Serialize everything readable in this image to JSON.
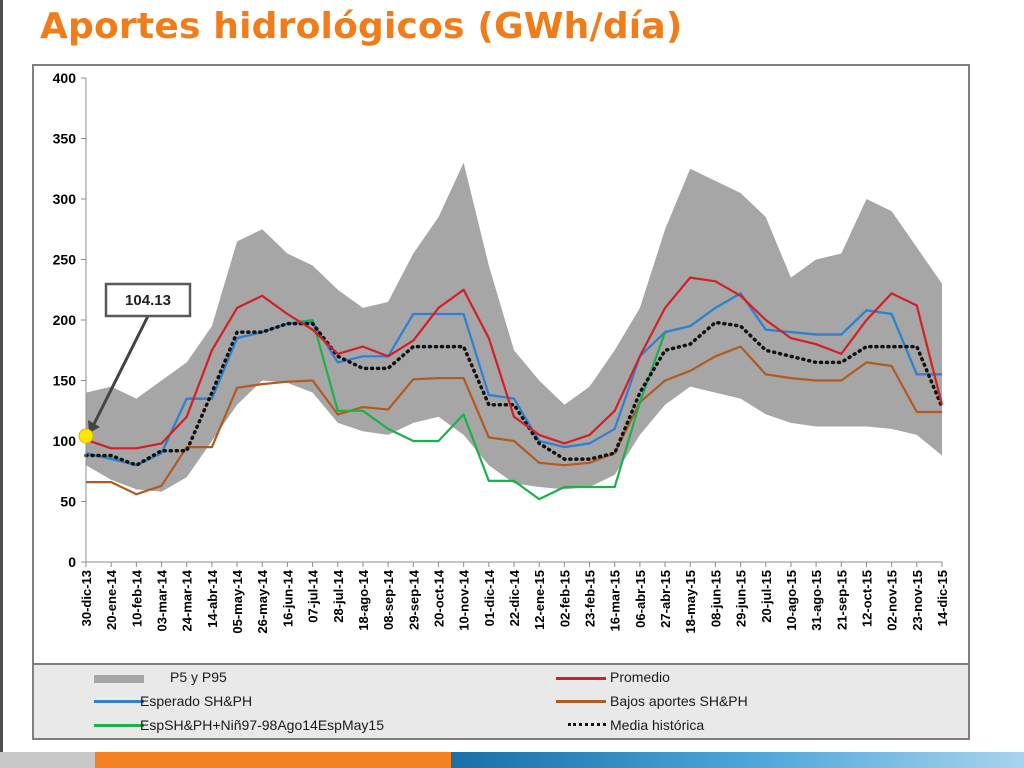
{
  "title": "Aportes hidrológicos (GWh/día)",
  "callout_label": "104.13",
  "colors": {
    "band": "#a6a6a6",
    "promedio": "#d41f26",
    "esperado": "#2f7fd6",
    "bajos": "#b35a1f",
    "nino": "#19b24b",
    "media": "#111111",
    "highlight": "#ffe600",
    "title": "#f07d19"
  },
  "legend": [
    {
      "label": "P5 y P95",
      "style": "band"
    },
    {
      "label": "Promedio",
      "style": "promedio"
    },
    {
      "label": "Esperado SH&PH",
      "style": "esperado"
    },
    {
      "label": "Bajos aportes SH&PH",
      "style": "bajos"
    },
    {
      "label": "EspSH&PH+Niñ97-98Ago14EspMay15",
      "style": "nino"
    },
    {
      "label": "Media histórica",
      "style": "media"
    }
  ],
  "chart_data": {
    "type": "line",
    "title": "Aportes hidrológicos (GWh/día)",
    "xlabel": "",
    "ylabel": "",
    "ylim": [
      0,
      400
    ],
    "yticks": [
      0,
      50,
      100,
      150,
      200,
      250,
      300,
      350,
      400
    ],
    "grid": false,
    "legend_position": "bottom",
    "x": [
      "30-dic-13",
      "20-ene-14",
      "10-feb-14",
      "03-mar-14",
      "24-mar-14",
      "14-abr-14",
      "05-may-14",
      "26-may-14",
      "16-jun-14",
      "07-jul-14",
      "28-jul-14",
      "18-ago-14",
      "08-sep-14",
      "29-sep-14",
      "20-oct-14",
      "10-nov-14",
      "01-dic-14",
      "22-dic-14",
      "12-ene-15",
      "02-feb-15",
      "23-feb-15",
      "16-mar-15",
      "06-abr-15",
      "27-abr-15",
      "18-may-15",
      "08-jun-15",
      "29-jun-15",
      "20-jul-15",
      "10-ago-15",
      "31-ago-15",
      "21-sep-15",
      "12-oct-15",
      "02-nov-15",
      "23-nov-15",
      "14-dic-15"
    ],
    "annotation": {
      "x": "30-dic-13",
      "y": 104.13,
      "label": "104.13"
    },
    "series": [
      {
        "name": "P5 y P95",
        "kind": "band",
        "upper": [
          140,
          145,
          135,
          150,
          165,
          195,
          265,
          275,
          255,
          245,
          225,
          210,
          215,
          255,
          285,
          330,
          245,
          175,
          150,
          130,
          145,
          175,
          210,
          275,
          325,
          315,
          305,
          285,
          235,
          250,
          255,
          300,
          290,
          260,
          230
        ],
        "lower": [
          80,
          68,
          60,
          58,
          70,
          100,
          130,
          150,
          148,
          140,
          115,
          108,
          105,
          115,
          120,
          105,
          80,
          65,
          62,
          60,
          62,
          72,
          105,
          130,
          145,
          140,
          135,
          122,
          115,
          112,
          112,
          112,
          110,
          105,
          88
        ]
      },
      {
        "name": "Promedio",
        "kind": "line",
        "values": [
          101,
          94,
          94,
          98,
          120,
          175,
          210,
          220,
          205,
          192,
          172,
          178,
          170,
          183,
          210,
          225,
          185,
          120,
          105,
          98,
          105,
          125,
          170,
          210,
          235,
          232,
          220,
          200,
          185,
          180,
          172,
          200,
          222,
          212,
          130
        ]
      },
      {
        "name": "Esperado SH&PH",
        "kind": "line",
        "values": [
          90,
          85,
          80,
          90,
          135,
          135,
          185,
          190,
          197,
          198,
          165,
          170,
          170,
          205,
          205,
          205,
          138,
          135,
          100,
          95,
          98,
          110,
          170,
          190,
          195,
          210,
          222,
          192,
          190,
          188,
          188,
          208,
          205,
          155,
          155
        ]
      },
      {
        "name": "Bajos aportes SH&PH",
        "kind": "line",
        "values": [
          66,
          66,
          56,
          63,
          95,
          95,
          144,
          147,
          149,
          150,
          122,
          128,
          126,
          151,
          152,
          152,
          103,
          100,
          82,
          80,
          82,
          90,
          132,
          150,
          158,
          170,
          178,
          155,
          152,
          150,
          150,
          165,
          162,
          124,
          124
        ]
      },
      {
        "name": "EspSH&PH+Niñ97-98Ago14EspMay15",
        "kind": "line",
        "values": [
          89,
          86,
          80,
          90,
          135,
          135,
          185,
          190,
          197,
          200,
          125,
          125,
          110,
          100,
          100,
          122,
          67,
          67,
          52,
          62,
          62,
          62,
          132,
          190,
          195,
          210,
          222,
          192,
          190,
          188,
          188,
          208,
          205,
          155,
          155
        ]
      },
      {
        "name": "Media histórica",
        "kind": "dotted",
        "values": [
          88,
          88,
          80,
          92,
          92,
          140,
          190,
          190,
          197,
          197,
          170,
          160,
          160,
          178,
          178,
          178,
          130,
          130,
          98,
          85,
          85,
          90,
          140,
          175,
          180,
          198,
          195,
          175,
          170,
          165,
          165,
          178,
          178,
          178,
          128
        ]
      }
    ]
  }
}
